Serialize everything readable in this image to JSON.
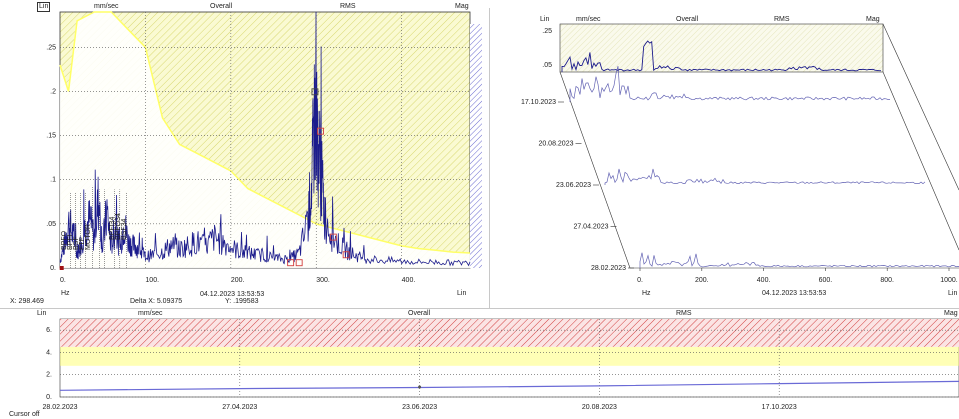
{
  "colors": {
    "plot_bg": "#fafad2",
    "hatch": "#d8d870",
    "spectrum": "#1c1c8c",
    "spectrum_light": "#6464b4",
    "alarm_yellow": "#ffff7a",
    "alarm_red": "#d24040",
    "marker_red": "#d24040",
    "grid": "#555555"
  },
  "left": {
    "scale_mode": "Lin",
    "unit": "mm/sec",
    "measure": "Overall",
    "detector": "RMS",
    "format": "Mag",
    "x_unit": "Hz",
    "x_scale": "Lin",
    "readout_x": "X: 298.469",
    "readout_delta": "Delta X: 5.09375",
    "readout_date": "04.12.2023 13:53:53",
    "readout_y": "Y: .199583",
    "fault_labels": [
      "BPFO",
      "BPFI",
      "BSF",
      "FTF",
      "MOTOR",
      "BPFI34",
      "BPFO34",
      "BSF34"
    ]
  },
  "waterfall": {
    "scale_mode": "Lin",
    "unit": "mm/sec",
    "measure": "Overall",
    "detector": "RMS",
    "format": "Mag",
    "x_unit": "Hz",
    "x_scale": "Lin",
    "date_label": "04.12.2023 13:53:53",
    "y_ticks": [
      ".25",
      ".05"
    ],
    "slices": [
      {
        "date": "17.10.2023",
        "strength": 1.0
      },
      {
        "date": "20.08.2023",
        "strength": 0.0
      },
      {
        "date": "23.06.2023",
        "strength": 0.65
      },
      {
        "date": "27.04.2023",
        "strength": 0.0
      },
      {
        "date": "28.02.2023",
        "strength": 0.55
      }
    ],
    "x_ticks": [
      0,
      200,
      400,
      600,
      800,
      1000
    ]
  },
  "trend": {
    "scale_mode": "Lin",
    "unit": "mm/sec",
    "measure": "Overall",
    "detector": "RMS",
    "format": "Mag",
    "status": "Cursor off",
    "cursor_value": 0.9
  },
  "chart_data": [
    {
      "type": "line",
      "title": "",
      "xlabel": "Hz",
      "ylabel": "mm/sec",
      "xlim": [
        0,
        480
      ],
      "ylim": [
        0,
        0.29
      ],
      "x_ticks": [
        0,
        100,
        200,
        300,
        400
      ],
      "y_ticks": [
        0,
        0.05,
        0.1,
        0.15,
        0.2,
        0.25
      ],
      "x_tick_labels": [
        "0.",
        "100.",
        "200.",
        "300.",
        "400."
      ],
      "y_tick_labels": [
        "0.",
        ".05",
        ".1",
        ".15",
        ".2",
        ".25"
      ],
      "series": [
        {
          "values": [
            [
              0,
              0.01
            ],
            [
              5,
              0.03
            ],
            [
              10,
              0.06
            ],
            [
              15,
              0.045
            ],
            [
              20,
              0.02
            ],
            [
              25,
              0.035
            ],
            [
              30,
              0.055
            ],
            [
              35,
              0.065
            ],
            [
              40,
              0.04
            ],
            [
              45,
              0.09
            ],
            [
              50,
              0.03
            ],
            [
              55,
              0.075
            ],
            [
              60,
              0.03
            ],
            [
              65,
              0.055
            ],
            [
              70,
              0.025
            ],
            [
              75,
              0.06
            ],
            [
              80,
              0.035
            ],
            [
              85,
              0.03
            ],
            [
              90,
              0.028
            ],
            [
              95,
              0.022
            ],
            [
              100,
              0.015
            ],
            [
              110,
              0.018
            ],
            [
              120,
              0.022
            ],
            [
              130,
              0.03
            ],
            [
              140,
              0.025
            ],
            [
              150,
              0.03
            ],
            [
              160,
              0.035
            ],
            [
              170,
              0.028
            ],
            [
              180,
              0.04
            ],
            [
              190,
              0.035
            ],
            [
              200,
              0.028
            ],
            [
              210,
              0.022
            ],
            [
              220,
              0.02
            ],
            [
              230,
              0.018
            ],
            [
              240,
              0.016
            ],
            [
              250,
              0.014
            ],
            [
              260,
              0.012
            ],
            [
              270,
              0.013
            ],
            [
              280,
              0.02
            ],
            [
              290,
              0.06
            ],
            [
              295,
              0.12
            ],
            [
              298,
              0.2
            ],
            [
              302,
              0.17
            ],
            [
              306,
              0.12
            ],
            [
              310,
              0.07
            ],
            [
              320,
              0.04
            ],
            [
              330,
              0.028
            ],
            [
              340,
              0.02
            ],
            [
              350,
              0.015
            ],
            [
              360,
              0.012
            ],
            [
              380,
              0.01
            ],
            [
              400,
              0.009
            ],
            [
              420,
              0.008
            ],
            [
              440,
              0.008
            ],
            [
              460,
              0.007
            ],
            [
              480,
              0.007
            ]
          ]
        },
        {
          "values": [
            [
              0,
              0.23
            ],
            [
              10,
              0.2
            ],
            [
              20,
              0.28
            ],
            [
              40,
              0.29
            ],
            [
              60,
              0.29
            ],
            [
              80,
              0.27
            ],
            [
              100,
              0.25
            ],
            [
              120,
              0.17
            ],
            [
              140,
              0.14
            ],
            [
              160,
              0.13
            ],
            [
              180,
              0.12
            ],
            [
              200,
              0.11
            ],
            [
              220,
              0.09
            ],
            [
              240,
              0.08
            ],
            [
              260,
              0.07
            ],
            [
              280,
              0.06
            ],
            [
              300,
              0.05
            ],
            [
              320,
              0.045
            ],
            [
              340,
              0.04
            ],
            [
              360,
              0.035
            ],
            [
              380,
              0.03
            ],
            [
              400,
              0.025
            ],
            [
              420,
              0.022
            ],
            [
              440,
              0.02
            ],
            [
              460,
              0.018
            ],
            [
              480,
              0.017
            ]
          ]
        }
      ],
      "markers": [
        {
          "x": 298.469,
          "y": 0.199583,
          "kind": "cursor"
        },
        {
          "x": 305,
          "y": 0.155,
          "kind": "harmonic"
        },
        {
          "x": 320,
          "y": 0.035,
          "kind": "harmonic"
        },
        {
          "x": 335,
          "y": 0.015,
          "kind": "harmonic"
        },
        {
          "x": 270,
          "y": 0.006,
          "kind": "harmonic"
        },
        {
          "x": 280,
          "y": 0.006,
          "kind": "harmonic"
        }
      ]
    },
    {
      "type": "line",
      "xlabel": "",
      "ylabel": "mm/sec",
      "xlim": [
        0,
        5
      ],
      "ylim": [
        0,
        7
      ],
      "x_tick_labels": [
        "28.02.2023",
        "27.04.2023",
        "23.06.2023",
        "20.08.2023",
        "17.10.2023"
      ],
      "y_tick_labels": [
        "0.",
        "2.",
        "4.",
        "6."
      ],
      "alarm_yellow_from": 2.8,
      "alarm_red_from": 4.5,
      "series": [
        {
          "values": [
            [
              0,
              0.6
            ],
            [
              1,
              0.75
            ],
            [
              2,
              0.85
            ],
            [
              3,
              1.0
            ],
            [
              4,
              1.2
            ],
            [
              5,
              1.4
            ]
          ]
        }
      ]
    }
  ]
}
